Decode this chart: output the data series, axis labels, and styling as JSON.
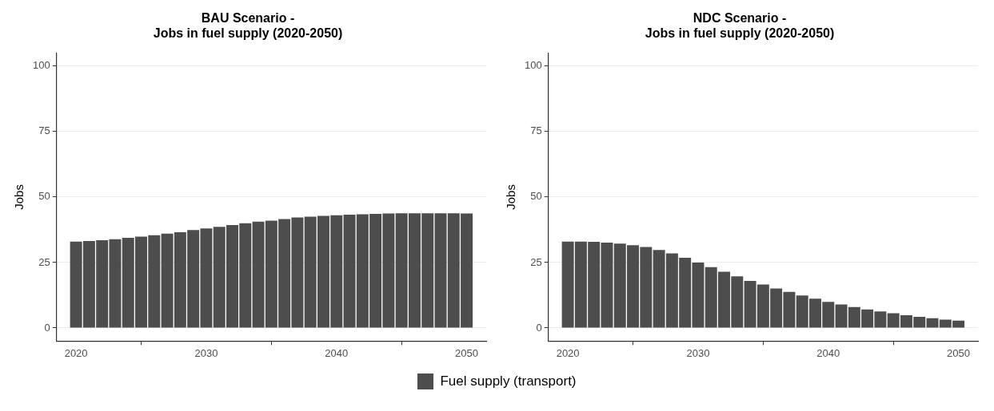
{
  "chart_data": [
    {
      "type": "bar",
      "title": "BAU Scenario -\nJobs in fuel supply (2020-2050)",
      "ylabel": "Jobs",
      "x": [
        2020,
        2021,
        2022,
        2023,
        2024,
        2025,
        2026,
        2027,
        2028,
        2029,
        2030,
        2031,
        2032,
        2033,
        2034,
        2035,
        2036,
        2037,
        2038,
        2039,
        2040,
        2041,
        2042,
        2043,
        2044,
        2045,
        2046,
        2047,
        2048,
        2049,
        2050
      ],
      "series": [
        {
          "name": "Fuel supply (transport)",
          "color": "#4d4d4d",
          "values": [
            33.0,
            33.2,
            33.5,
            33.9,
            34.4,
            34.9,
            35.4,
            36.0,
            36.6,
            37.4,
            38.0,
            38.6,
            39.3,
            40.0,
            40.6,
            41.0,
            41.6,
            42.2,
            42.5,
            42.8,
            43.0,
            43.3,
            43.4,
            43.6,
            43.7,
            43.8,
            43.8,
            43.8,
            43.8,
            43.8,
            43.7
          ]
        }
      ],
      "xlim": [
        2018.5,
        2051.5
      ],
      "xticks": [
        2020,
        2030,
        2040,
        2050
      ],
      "ylim": [
        -5,
        105
      ],
      "yticks": [
        0,
        25,
        50,
        75,
        100
      ],
      "grid": "y",
      "legend": "bottom"
    },
    {
      "type": "bar",
      "title": "NDC Scenario -\nJobs in fuel supply (2020-2050)",
      "ylabel": "Jobs",
      "x": [
        2020,
        2021,
        2022,
        2023,
        2024,
        2025,
        2026,
        2027,
        2028,
        2029,
        2030,
        2031,
        2032,
        2033,
        2034,
        2035,
        2036,
        2037,
        2038,
        2039,
        2040,
        2041,
        2042,
        2043,
        2044,
        2045,
        2046,
        2047,
        2048,
        2049,
        2050
      ],
      "series": [
        {
          "color": "#4d4d4d",
          "values": [
            33.0,
            33.0,
            32.9,
            32.6,
            32.2,
            31.6,
            30.9,
            29.8,
            28.5,
            26.8,
            25.0,
            23.2,
            21.5,
            19.7,
            18.0,
            16.6,
            15.1,
            13.8,
            12.4,
            11.2,
            10.0,
            9.0,
            8.0,
            7.1,
            6.3,
            5.6,
            4.9,
            4.3,
            3.7,
            3.2,
            2.8
          ]
        }
      ],
      "xlim": [
        2018.5,
        2051.5
      ],
      "xticks": [
        2020,
        2030,
        2040,
        2050
      ],
      "ylim": [
        -5,
        105
      ],
      "yticks": [
        0,
        25,
        50,
        75,
        100
      ],
      "grid": "y"
    }
  ]
}
